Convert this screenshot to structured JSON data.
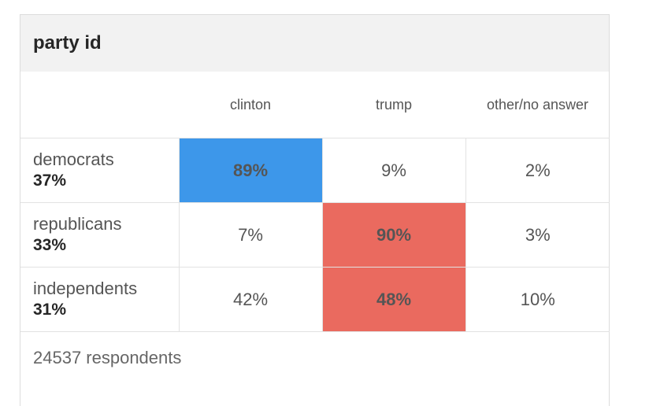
{
  "title": "party id",
  "columns": [
    "clinton",
    "trump",
    "other/no answer"
  ],
  "rows": [
    {
      "group": "democrats",
      "share": "37%",
      "values": [
        "89%",
        "9%",
        "2%"
      ],
      "leader": 0
    },
    {
      "group": "republicans",
      "share": "33%",
      "values": [
        "7%",
        "90%",
        "3%"
      ],
      "leader": 1
    },
    {
      "group": "independents",
      "share": "31%",
      "values": [
        "42%",
        "48%",
        "10%"
      ],
      "leader": 1
    }
  ],
  "footer": "24537 respondents",
  "colors": {
    "clinton": "#3d97ea",
    "trump": "#ea6a5f"
  },
  "chart_data": {
    "type": "table",
    "title": "party id",
    "columns": [
      "clinton",
      "trump",
      "other/no answer"
    ],
    "rows": [
      {
        "label": "democrats",
        "share": 37,
        "values": [
          89,
          9,
          2
        ]
      },
      {
        "label": "republicans",
        "share": 33,
        "values": [
          7,
          90,
          3
        ]
      },
      {
        "label": "independents",
        "share": 31,
        "values": [
          42,
          48,
          10
        ]
      }
    ],
    "unit": "%",
    "respondents": 24537
  }
}
